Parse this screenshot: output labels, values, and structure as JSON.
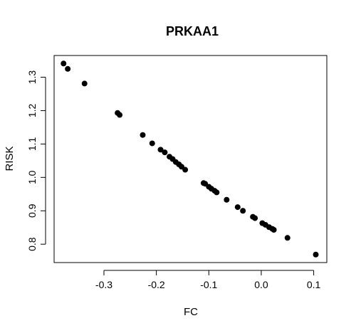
{
  "chart_data": {
    "type": "scatter",
    "title": "PRKAA1",
    "xlabel": "FC",
    "ylabel": "RISK",
    "xlim": [
      -0.395,
      0.125
    ],
    "ylim": [
      0.745,
      1.365
    ],
    "x_ticks": [
      -0.3,
      -0.2,
      -0.1,
      0.0,
      0.1
    ],
    "x_tick_labels": [
      "-0.3",
      "-0.2",
      "-0.1",
      "0.0",
      "0.1"
    ],
    "y_ticks": [
      0.8,
      0.9,
      1.0,
      1.1,
      1.2,
      1.3
    ],
    "y_tick_labels": [
      "0.8",
      "0.9",
      "1.0",
      "1.1",
      "1.2",
      "1.3"
    ],
    "grid": false,
    "legend": "none",
    "point_color": "#000000",
    "points": [
      {
        "x": -0.377,
        "y": 1.341
      },
      {
        "x": -0.369,
        "y": 1.325
      },
      {
        "x": -0.337,
        "y": 1.281
      },
      {
        "x": -0.274,
        "y": 1.193
      },
      {
        "x": -0.27,
        "y": 1.187
      },
      {
        "x": -0.226,
        "y": 1.127
      },
      {
        "x": -0.208,
        "y": 1.102
      },
      {
        "x": -0.192,
        "y": 1.083
      },
      {
        "x": -0.184,
        "y": 1.075
      },
      {
        "x": -0.175,
        "y": 1.062
      },
      {
        "x": -0.169,
        "y": 1.055
      },
      {
        "x": -0.163,
        "y": 1.046
      },
      {
        "x": -0.157,
        "y": 1.039
      },
      {
        "x": -0.152,
        "y": 1.032
      },
      {
        "x": -0.145,
        "y": 1.023
      },
      {
        "x": -0.11,
        "y": 0.983
      },
      {
        "x": -0.107,
        "y": 0.981
      },
      {
        "x": -0.1,
        "y": 0.972
      },
      {
        "x": -0.095,
        "y": 0.966
      },
      {
        "x": -0.089,
        "y": 0.96
      },
      {
        "x": -0.085,
        "y": 0.955
      },
      {
        "x": -0.066,
        "y": 0.933
      },
      {
        "x": -0.045,
        "y": 0.911
      },
      {
        "x": -0.035,
        "y": 0.9
      },
      {
        "x": -0.016,
        "y": 0.882
      },
      {
        "x": -0.012,
        "y": 0.878
      },
      {
        "x": 0.002,
        "y": 0.863
      },
      {
        "x": 0.008,
        "y": 0.858
      },
      {
        "x": 0.015,
        "y": 0.851
      },
      {
        "x": 0.021,
        "y": 0.846
      },
      {
        "x": 0.024,
        "y": 0.843
      },
      {
        "x": 0.05,
        "y": 0.819
      },
      {
        "x": 0.104,
        "y": 0.769
      }
    ]
  }
}
